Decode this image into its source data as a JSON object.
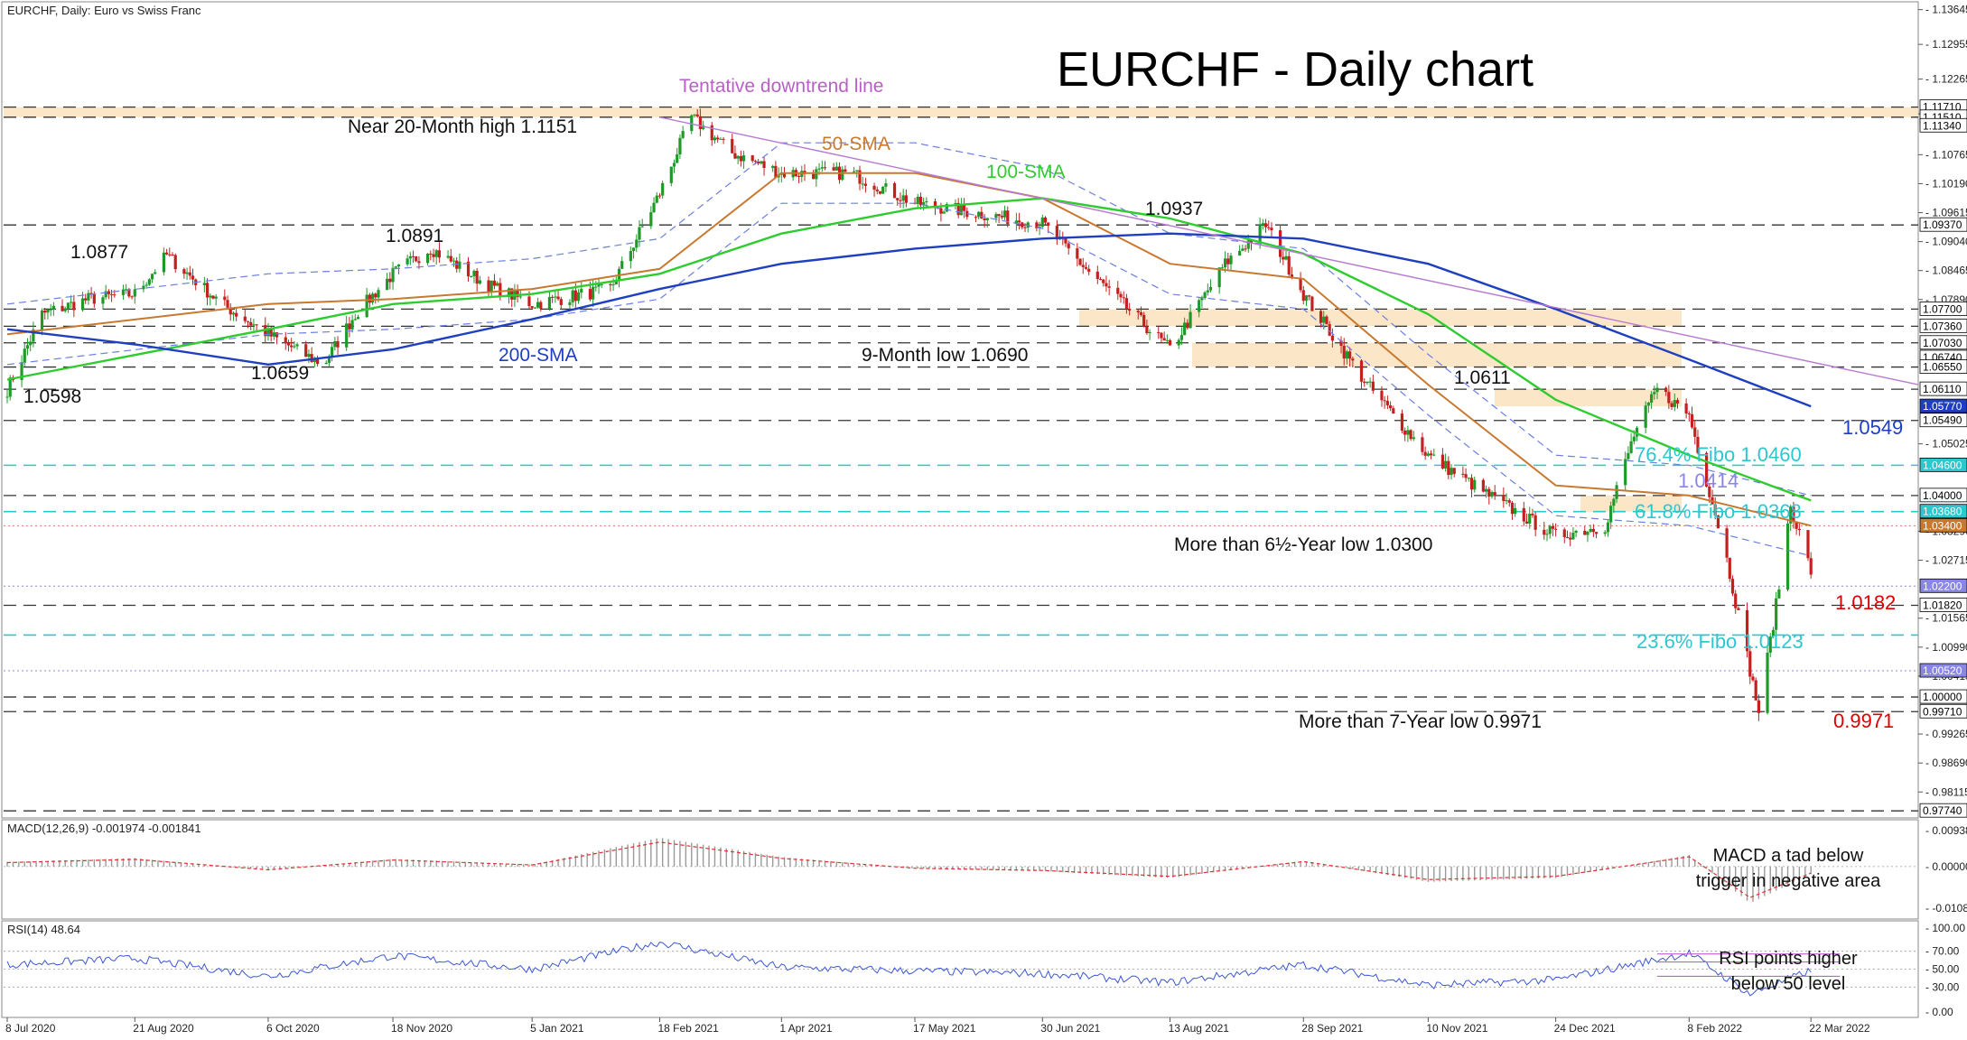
{
  "header": {
    "symbol": "EURCHF, Daily:  Euro vs Swiss Franc"
  },
  "title": "EURCHF - Daily chart",
  "price_axis": {
    "ticks": [
      {
        "v": 1.13645,
        "l": "1.13645"
      },
      {
        "v": 1.12955,
        "l": "1.12955"
      },
      {
        "v": 1.12265,
        "l": "1.12265"
      },
      {
        "v": 1.11575,
        "l": "1.11575"
      },
      {
        "v": 1.10765,
        "l": "1.10765"
      },
      {
        "v": 1.1019,
        "l": "1.10190"
      },
      {
        "v": 1.09615,
        "l": "1.09615"
      },
      {
        "v": 1.0904,
        "l": "1.09040"
      },
      {
        "v": 1.08465,
        "l": "1.08465"
      },
      {
        "v": 1.0789,
        "l": "1.07890"
      },
      {
        "v": 1.05025,
        "l": "1.05025"
      },
      {
        "v": 1.0329,
        "l": "1.03290"
      },
      {
        "v": 1.02715,
        "l": "1.02715"
      },
      {
        "v": 1.01565,
        "l": "1.01565"
      },
      {
        "v": 1.0099,
        "l": "1.00990"
      },
      {
        "v": 1.00415,
        "l": "1.00415"
      },
      {
        "v": 0.99265,
        "l": "0.99265"
      },
      {
        "v": 0.9869,
        "l": "0.98690"
      },
      {
        "v": 0.98115,
        "l": "0.98115"
      }
    ],
    "boxes": [
      {
        "v": 1.1171,
        "l": "1.11710",
        "bg": "#ffffff",
        "fg": "#000000"
      },
      {
        "v": 1.1151,
        "l": "1.11510",
        "bg": "#ffffff",
        "fg": "#000000"
      },
      {
        "v": 1.1134,
        "l": "1.11340",
        "bg": "#ffffff",
        "fg": "#000000"
      },
      {
        "v": 1.0937,
        "l": "1.09370",
        "bg": "#ffffff",
        "fg": "#000000"
      },
      {
        "v": 1.077,
        "l": "1.07700",
        "bg": "#ffffff",
        "fg": "#000000"
      },
      {
        "v": 1.0736,
        "l": "1.07360",
        "bg": "#ffffff",
        "fg": "#000000"
      },
      {
        "v": 1.0703,
        "l": "1.07030",
        "bg": "#ffffff",
        "fg": "#000000"
      },
      {
        "v": 1.0674,
        "l": "1.06740",
        "bg": "#ffffff",
        "fg": "#000000"
      },
      {
        "v": 1.0655,
        "l": "1.06550",
        "bg": "#ffffff",
        "fg": "#000000"
      },
      {
        "v": 1.0611,
        "l": "1.06110",
        "bg": "#ffffff",
        "fg": "#000000"
      },
      {
        "v": 1.0577,
        "l": "1.05770",
        "bg": "#1e3fbf",
        "fg": "#ffffff"
      },
      {
        "v": 1.0549,
        "l": "1.05490",
        "bg": "#ffffff",
        "fg": "#000000"
      },
      {
        "v": 1.046,
        "l": "1.04600",
        "bg": "#2ec6cf",
        "fg": "#ffffff"
      },
      {
        "v": 1.04,
        "l": "1.04000",
        "bg": "#ffffff",
        "fg": "#000000"
      },
      {
        "v": 1.0368,
        "l": "1.03680",
        "bg": "#2ec6cf",
        "fg": "#ffffff"
      },
      {
        "v": 1.034,
        "l": "1.03400",
        "bg": "#c8782f",
        "fg": "#ffffff"
      },
      {
        "v": 1.022,
        "l": "1.02200",
        "bg": "#8a86e6",
        "fg": "#ffffff"
      },
      {
        "v": 1.0182,
        "l": "1.01820",
        "bg": "#ffffff",
        "fg": "#000000"
      },
      {
        "v": 1.0052,
        "l": "1.00520",
        "bg": "#8a86e6",
        "fg": "#ffffff"
      },
      {
        "v": 1.0,
        "l": "1.00000",
        "bg": "#ffffff",
        "fg": "#000000"
      },
      {
        "v": 0.9971,
        "l": "0.99710",
        "bg": "#ffffff",
        "fg": "#000000"
      },
      {
        "v": 0.9774,
        "l": "0.97740",
        "bg": "#ffffff",
        "fg": "#000000"
      }
    ]
  },
  "date_axis": {
    "labels": [
      "8 Jul 2020",
      "21 Aug 2020",
      "6 Oct 2020",
      "18 Nov 2020",
      "5 Jan 2021",
      "18 Feb 2021",
      "1 Apr 2021",
      "17 May 2021",
      "30 Jun 2021",
      "13 Aug 2021",
      "28 Sep 2021",
      "10 Nov 2021",
      "24 Dec 2021",
      "8 Feb 2022",
      "22 Mar 2022"
    ]
  },
  "annotations": {
    "near_high": "Near 20-Month high 1.1151",
    "downtrend": "Tentative downtrend  line",
    "sma50": "50-SMA",
    "sma100": "100-SMA",
    "sma200": "200-SMA",
    "p1_0877": "1.0877",
    "p1_0891": "1.0891",
    "p1_0659": "1.0659",
    "p1_0598": "1.0598",
    "p1_0937": "1.0937",
    "low_9m": "9-Month low 1.0690",
    "p1_0611": "1.0611",
    "p1_0549": "1.0549",
    "fibo764": "76.4% Fibo 1.0460",
    "p1_0414": "1.0414",
    "fibo618": "61.8% Fibo 1.0368",
    "low_6y": "More than 6½-Year low 1.0300",
    "p1_0182": "1.0182",
    "fibo236": "23.6% Fibo 1.0123",
    "low_7y": "More than 7-Year low 0.9971",
    "p0_9971": "0.9971"
  },
  "macd": {
    "header": "MACD(12,26,9) -0.001974 -0.001841",
    "ticks": [
      "0.009385",
      "0.000000",
      "-0.010863"
    ],
    "note_line1": "MACD a tad below",
    "note_line2": "trigger in negative area"
  },
  "rsi": {
    "header": "RSI(14) 48.64",
    "ticks": [
      "70.00",
      "50.00",
      "30.00",
      "100.00",
      "0.00"
    ],
    "note_line1": "RSI points higher",
    "note_line2": "below 50 level"
  },
  "colors": {
    "sma50": "#c8782f",
    "sma100": "#2ecc2e",
    "sma200": "#1e3fbf",
    "bollinger": "#6b7fe0",
    "downtrend": "#b77bd1",
    "fibo": "#2ec6cf",
    "zone": "#fbe3c2",
    "candle": "#1f9a2a",
    "candle_down": "#c42020",
    "red_label": "#dd0000",
    "blue_label": "#1e3fbf",
    "purple_label": "#8a86e6",
    "pink_annotation": "#b95fc8"
  },
  "chart_data": {
    "type": "candlestick",
    "title": "EURCHF - Daily chart",
    "pair": "EURCHF",
    "timeframe": "Daily",
    "date_range": [
      "8 Jul 2020",
      "22 Mar 2022"
    ],
    "ylim": [
      0.976,
      1.138
    ],
    "horizontal_levels": [
      1.1171,
      1.1151,
      1.0937,
      1.077,
      1.0736,
      1.0703,
      1.0655,
      1.0611,
      1.0549,
      1.046,
      1.04,
      1.0368,
      1.034,
      1.022,
      1.0182,
      1.0123,
      1.0052,
      1.0,
      0.9971,
      0.9774
    ],
    "resistance_zones": [
      [
        1.1151,
        1.1171
      ],
      [
        1.0736,
        1.077
      ],
      [
        1.0655,
        1.0703
      ],
      [
        1.0577,
        1.0611
      ],
      [
        1.0368,
        1.04
      ]
    ],
    "price_path": [
      [
        "8 Jul 2020",
        1.061
      ],
      [
        "20 Jul 2020",
        1.076
      ],
      [
        "5 Aug 2020",
        1.079
      ],
      [
        "21 Aug 2020",
        1.08
      ],
      [
        "1 Sep 2020",
        1.0877
      ],
      [
        "20 Sep 2020",
        1.078
      ],
      [
        "6 Oct 2020",
        1.072
      ],
      [
        "25 Oct 2020",
        1.0659
      ],
      [
        "5 Nov 2020",
        1.076
      ],
      [
        "18 Nov 2020",
        1.084
      ],
      [
        "1 Dec 2020",
        1.0891
      ],
      [
        "20 Dec 2020",
        1.082
      ],
      [
        "5 Jan 2021",
        1.078
      ],
      [
        "1 Feb 2021",
        1.081
      ],
      [
        "18 Feb 2021",
        1.1
      ],
      [
        "1 Mar 2021",
        1.1151
      ],
      [
        "15 Mar 2021",
        1.108
      ],
      [
        "1 Apr 2021",
        1.104
      ],
      [
        "25 Apr 2021",
        1.104
      ],
      [
        "17 May 2021",
        1.098
      ],
      [
        "30 Jun 2021",
        1.094
      ],
      [
        "15 Jul 2021",
        1.085
      ],
      [
        "13 Aug 2021",
        1.069
      ],
      [
        "1 Sep 2021",
        1.086
      ],
      [
        "15 Sep 2021",
        1.0937
      ],
      [
        "28 Sep 2021",
        1.08
      ],
      [
        "20 Oct 2021",
        1.062
      ],
      [
        "10 Nov 2021",
        1.048
      ],
      [
        "1 Dec 2021",
        1.04
      ],
      [
        "24 Dec 2021",
        1.032
      ],
      [
        "10 Jan 2022",
        1.034
      ],
      [
        "20 Jan 2022",
        1.052
      ],
      [
        "28 Jan 2022",
        1.0611
      ],
      [
        "8 Feb 2022",
        1.056
      ],
      [
        "20 Feb 2022",
        1.03
      ],
      [
        "4 Mar 2022",
        0.9971
      ],
      [
        "10 Mar 2022",
        1.0182
      ],
      [
        "15 Mar 2022",
        1.038
      ],
      [
        "22 Mar 2022",
        1.025
      ]
    ],
    "sma50": [
      [
        "8 Jul 2020",
        1.072
      ],
      [
        "6 Oct 2020",
        1.078
      ],
      [
        "18 Nov 2020",
        1.079
      ],
      [
        "5 Jan 2021",
        1.081
      ],
      [
        "18 Feb 2021",
        1.085
      ],
      [
        "1 Apr 2021",
        1.104
      ],
      [
        "17 May 2021",
        1.104
      ],
      [
        "30 Jun 2021",
        1.099
      ],
      [
        "13 Aug 2021",
        1.086
      ],
      [
        "28 Sep 2021",
        1.083
      ],
      [
        "10 Nov 2021",
        1.062
      ],
      [
        "24 Dec 2021",
        1.042
      ],
      [
        "8 Feb 2022",
        1.04
      ],
      [
        "22 Mar 2022",
        1.034
      ]
    ],
    "sma100": [
      [
        "8 Jul 2020",
        1.063
      ],
      [
        "6 Oct 2020",
        1.073
      ],
      [
        "18 Nov 2020",
        1.078
      ],
      [
        "5 Jan 2021",
        1.08
      ],
      [
        "18 Feb 2021",
        1.084
      ],
      [
        "1 Apr 2021",
        1.092
      ],
      [
        "17 May 2021",
        1.097
      ],
      [
        "30 Jun 2021",
        1.099
      ],
      [
        "13 Aug 2021",
        1.095
      ],
      [
        "28 Sep 2021",
        1.088
      ],
      [
        "10 Nov 2021",
        1.076
      ],
      [
        "24 Dec 2021",
        1.059
      ],
      [
        "8 Feb 2022",
        1.048
      ],
      [
        "22 Mar 2022",
        1.039
      ]
    ],
    "sma200": [
      [
        "8 Jul 2020",
        1.073
      ],
      [
        "21 Aug 2020",
        1.07
      ],
      [
        "6 Oct 2020",
        1.066
      ],
      [
        "18 Nov 2020",
        1.069
      ],
      [
        "5 Jan 2021",
        1.075
      ],
      [
        "18 Feb 2021",
        1.081
      ],
      [
        "1 Apr 2021",
        1.086
      ],
      [
        "17 May 2021",
        1.089
      ],
      [
        "30 Jun 2021",
        1.091
      ],
      [
        "13 Aug 2021",
        1.092
      ],
      [
        "28 Sep 2021",
        1.091
      ],
      [
        "10 Nov 2021",
        1.086
      ],
      [
        "24 Dec 2021",
        1.077
      ],
      [
        "8 Feb 2022",
        1.067
      ],
      [
        "22 Mar 2022",
        1.0577
      ]
    ],
    "downtrend_line": [
      [
        "18 Feb 2021",
        1.1151
      ],
      [
        "28 Apr 2022",
        1.062
      ]
    ],
    "macd_values": [
      [
        "8 Jul 2020",
        0.0012
      ],
      [
        "21 Aug 2020",
        0.0022
      ],
      [
        "6 Oct 2020",
        -0.001
      ],
      [
        "18 Nov 2020",
        0.002
      ],
      [
        "5 Jan 2021",
        0.0005
      ],
      [
        "18 Feb 2021",
        0.0075
      ],
      [
        "1 Apr 2021",
        0.0025
      ],
      [
        "17 May 2021",
        -0.0005
      ],
      [
        "30 Jun 2021",
        -0.0012
      ],
      [
        "13 Aug 2021",
        -0.003
      ],
      [
        "28 Sep 2021",
        0.0015
      ],
      [
        "10 Nov 2021",
        -0.004
      ],
      [
        "24 Dec 2021",
        -0.003
      ],
      [
        "8 Feb 2022",
        0.003
      ],
      [
        "1 Mar 2022",
        -0.0095
      ],
      [
        "22 Mar 2022",
        -0.002
      ]
    ],
    "rsi_values": [
      [
        "8 Jul 2020",
        55
      ],
      [
        "21 Aug 2020",
        62
      ],
      [
        "6 Oct 2020",
        42
      ],
      [
        "18 Nov 2020",
        65
      ],
      [
        "5 Jan 2021",
        50
      ],
      [
        "18 Feb 2021",
        80
      ],
      [
        "1 Apr 2021",
        52
      ],
      [
        "17 May 2021",
        48
      ],
      [
        "30 Jun 2021",
        45
      ],
      [
        "13 Aug 2021",
        35
      ],
      [
        "28 Sep 2021",
        55
      ],
      [
        "10 Nov 2021",
        32
      ],
      [
        "24 Dec 2021",
        38
      ],
      [
        "8 Feb 2022",
        68
      ],
      [
        "1 Mar 2022",
        22
      ],
      [
        "22 Mar 2022",
        48.64
      ]
    ]
  }
}
